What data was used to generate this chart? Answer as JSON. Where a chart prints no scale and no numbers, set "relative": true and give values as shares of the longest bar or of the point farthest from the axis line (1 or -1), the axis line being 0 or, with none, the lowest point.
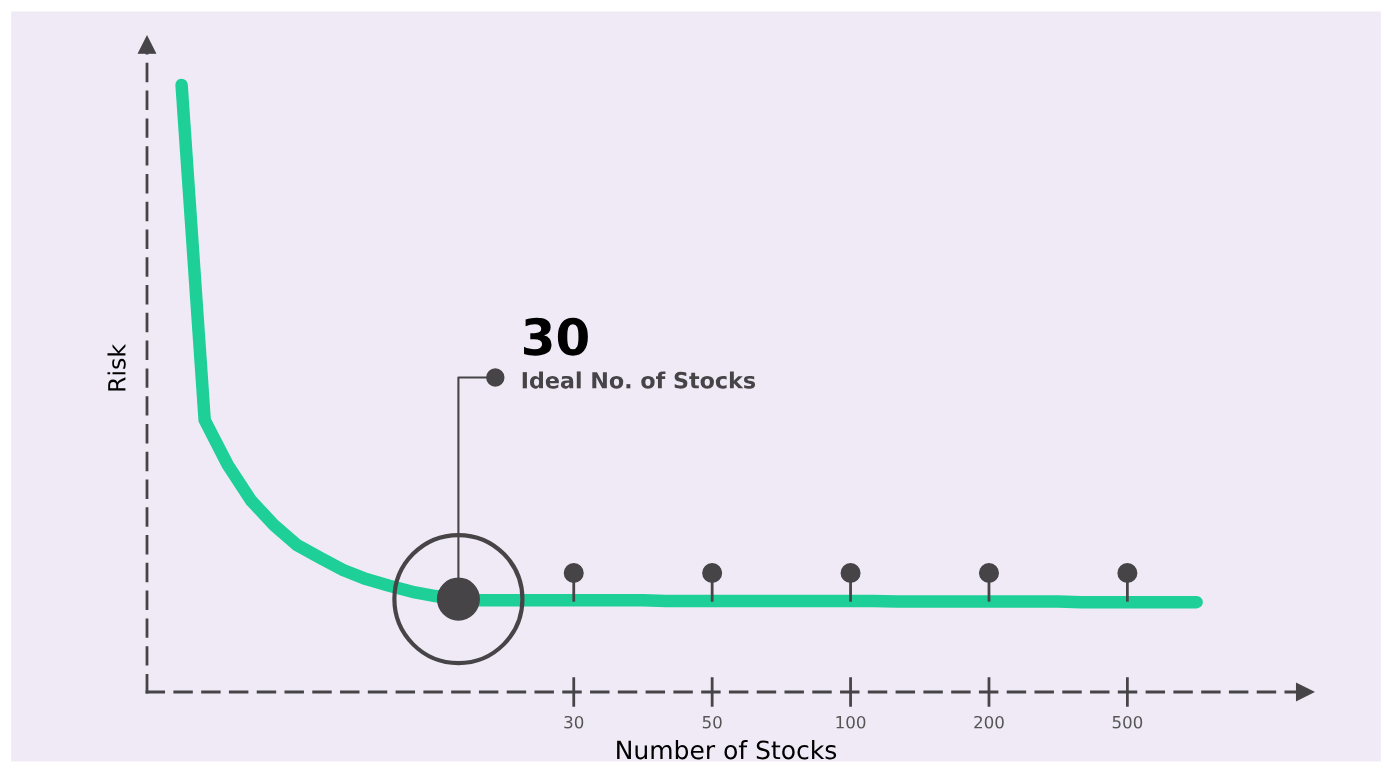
{
  "chart_data": {
    "type": "line",
    "relative": true,
    "xlabel": "Number of Stocks",
    "ylabel": "Risk",
    "categories": [
      null,
      null,
      null,
      null,
      null,
      null,
      null,
      null,
      null,
      null,
      null,
      null,
      null,
      null,
      null,
      null,
      null,
      "30",
      null,
      null,
      null,
      null,
      null,
      "50",
      null,
      null,
      null,
      null,
      null,
      "100",
      null,
      null,
      null,
      null,
      null,
      "200",
      null,
      null,
      null,
      null,
      null,
      "500",
      null,
      null,
      null
    ],
    "series": [
      {
        "color": "#1fcf98",
        "values": [
          1.0,
          0.448,
          0.374,
          0.316,
          0.275,
          0.242,
          0.221,
          0.201,
          0.186,
          0.175,
          0.165,
          0.158,
          0.153,
          0.151,
          0.151,
          0.151,
          0.151,
          0.151,
          0.151,
          0.151,
          0.151,
          0.15,
          0.15,
          0.15,
          0.15,
          0.15,
          0.15,
          0.15,
          0.15,
          0.15,
          0.15,
          0.149,
          0.149,
          0.149,
          0.149,
          0.149,
          0.149,
          0.149,
          0.149,
          0.148,
          0.148,
          0.148,
          0.148,
          0.148,
          0.148
        ]
      },
      {
        "type": "scatter",
        "color": "#474448",
        "marker": "circle",
        "values": [
          null,
          null,
          null,
          null,
          null,
          null,
          null,
          null,
          null,
          null,
          null,
          null,
          null,
          null,
          null,
          null,
          null,
          0.196,
          null,
          null,
          null,
          null,
          null,
          0.196,
          null,
          null,
          null,
          null,
          null,
          0.196,
          null,
          null,
          null,
          null,
          null,
          0.196,
          null,
          null,
          null,
          null,
          null,
          0.196,
          null,
          null,
          null
        ]
      },
      {
        "type": "scatter",
        "color": "#474448",
        "marker": "circle",
        "values": [
          null,
          null,
          null,
          null,
          null,
          null,
          null,
          null,
          null,
          null,
          null,
          null,
          0.153,
          null,
          null,
          null,
          null,
          null,
          null,
          null,
          null,
          null,
          null,
          null,
          null,
          null,
          null,
          null,
          null,
          null,
          null,
          null,
          null,
          null,
          null,
          null,
          null,
          null,
          null,
          null,
          null,
          null,
          null,
          null,
          null
        ]
      }
    ],
    "annotations": [
      "30",
      "Ideal No. of Stocks"
    ],
    "line_style": "solid"
  }
}
